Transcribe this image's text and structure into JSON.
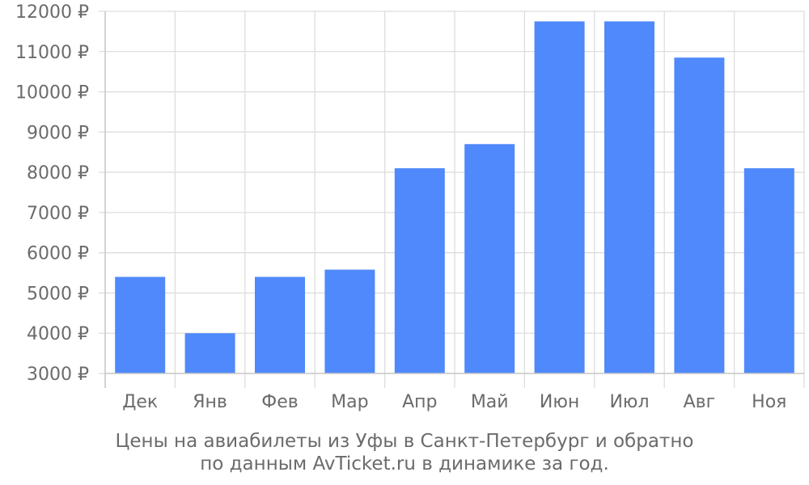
{
  "chart_data": {
    "type": "bar",
    "categories": [
      "Дек",
      "Янв",
      "Фев",
      "Мар",
      "Апр",
      "Май",
      "Июн",
      "Июл",
      "Авг",
      "Ноя"
    ],
    "values": [
      5400,
      4000,
      5400,
      5580,
      8100,
      8700,
      11750,
      11750,
      10850,
      8100
    ],
    "ylim": [
      3000,
      12000
    ],
    "yticks": [
      3000,
      4000,
      5000,
      6000,
      7000,
      8000,
      9000,
      10000,
      11000,
      12000
    ],
    "ytick_labels": [
      "3000 ₽",
      "4000 ₽",
      "5000 ₽",
      "6000 ₽",
      "7000 ₽",
      "8000 ₽",
      "9000 ₽",
      "10000 ₽",
      "11000 ₽",
      "12000 ₽"
    ],
    "grid": true,
    "bar_color": "#4f89fb",
    "grid_color": "#dddddd",
    "title": ""
  },
  "caption": {
    "line1": "Цены на авиабилеты из Уфы в Санкт-Петербург и обратно",
    "line2": "по данным AvTicket.ru в динамике за год."
  }
}
